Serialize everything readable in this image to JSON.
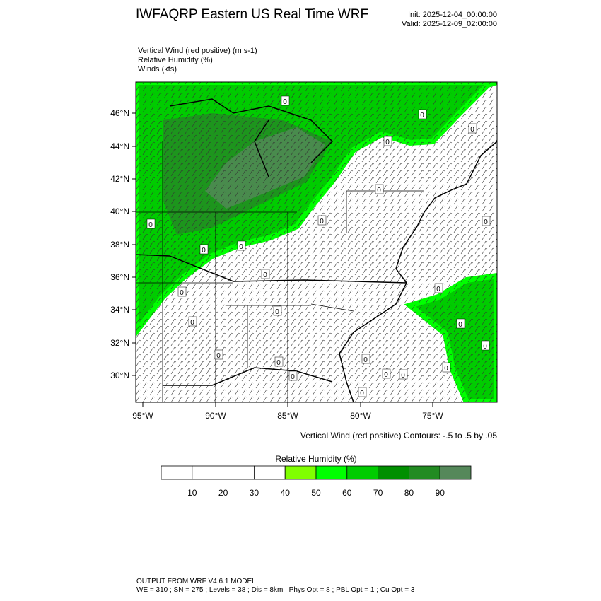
{
  "header": {
    "title": "IWFAQRP Eastern US Real Time WRF",
    "init": "Init: 2025-12-04_00:00:00",
    "valid": "Valid: 2025-12-09_02:00:00"
  },
  "fields": [
    "Vertical Wind (red positive)   (m s-1)",
    "Relative Humidity   (%)",
    "Winds   (kts)"
  ],
  "map": {
    "lat_labels": [
      "46°N",
      "44°N",
      "42°N",
      "40°N",
      "38°N",
      "36°N",
      "34°N",
      "32°N",
      "30°N"
    ],
    "lon_labels": [
      "95°W",
      "90°W",
      "85°W",
      "80°W",
      "75°W"
    ],
    "contour_labels": [
      "0",
      "0",
      "0",
      "0",
      "0",
      "0",
      "0",
      "0",
      "0",
      "0",
      "0",
      "0",
      "0",
      "0",
      "0",
      "0",
      "0",
      "0",
      "0",
      "0",
      "0",
      "0",
      "0",
      "0",
      "0"
    ],
    "contour_note": "Vertical Wind (red positive) Contours: -.5 to .5 by .05"
  },
  "colorbar": {
    "title": "Relative Humidity  (%)",
    "labels": [
      "10",
      "20",
      "30",
      "40",
      "50",
      "60",
      "70",
      "80",
      "90"
    ],
    "colors": [
      "#ffffff",
      "#ffffff",
      "#ffffff",
      "#ffffff",
      "#80ff00",
      "#00ff00",
      "#00cc00",
      "#008f00",
      "#228b22",
      "#55885a"
    ]
  },
  "footer": {
    "line1": "OUTPUT FROM WRF V4.6.1 MODEL",
    "line2": "WE = 310 ; SN = 275 ; Levels = 38 ; Dis = 8km ; Phys Opt = 8 ; PBL Opt = 1 ; Cu Opt = 3"
  }
}
